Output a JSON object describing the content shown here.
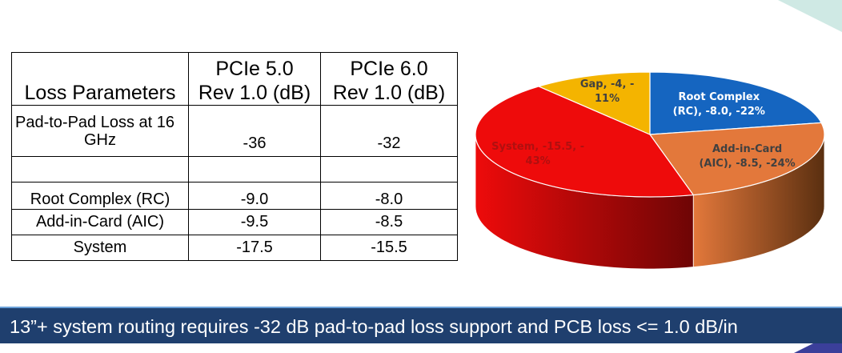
{
  "table": {
    "headers": [
      "Loss Parameters",
      "PCIe 5.0 Rev 1.0 (dB)",
      "PCIe 6.0 Rev 1.0 (dB)"
    ],
    "header_lines": {
      "c2a": "PCIe 5.0",
      "c2b": "Rev 1.0 (dB)",
      "c3a": "PCIe 6.0",
      "c3b": "Rev 1.0 (dB)"
    },
    "rows": [
      {
        "label": "Pad-to-Pad Loss at 16 GHz",
        "label_a": "Pad-to-Pad Loss at 16",
        "label_b": "GHz",
        "pcie5": "-36",
        "pcie6": "-32"
      },
      {
        "label": "",
        "pcie5": "",
        "pcie6": ""
      },
      {
        "label": "Root Complex (RC)",
        "pcie5": "-9.0",
        "pcie6": "-8.0"
      },
      {
        "label": "Add-in-Card (AIC)",
        "pcie5": "-9.5",
        "pcie6": "-8.5"
      },
      {
        "label": "System",
        "pcie5": "-17.5",
        "pcie6": "-15.5"
      }
    ]
  },
  "chart_data": {
    "type": "pie",
    "style": "3d",
    "slices": [
      {
        "name": "Root Complex (RC)",
        "value": -8.0,
        "percent": 22,
        "color": "#1565c0",
        "side_color": "#0d3d78",
        "label_lines": [
          "Root Complex",
          "(RC), -8.0, -22%"
        ],
        "label_color": "#ffffff"
      },
      {
        "name": "Add-in-Card (AIC)",
        "value": -8.5,
        "percent": 24,
        "color": "#e3783b",
        "side_color": "#5a2f10",
        "label_lines": [
          "Add-in-Card",
          "(AIC), -8.5, -24%"
        ],
        "label_color": "#404040"
      },
      {
        "name": "System",
        "value": -15.5,
        "percent": 43,
        "color": "#ee0b0b",
        "side_color": "#6e0505",
        "label_lines": [
          "System, -15.5, -",
          "43%"
        ],
        "label_color": "#b01010"
      },
      {
        "name": "Gap",
        "value": -4,
        "percent": 11,
        "color": "#f4b400",
        "side_color": "#8a6500",
        "label_lines": [
          "Gap, -4, -",
          "11%"
        ],
        "label_color": "#404040"
      }
    ]
  },
  "banner": {
    "text": "13”+ system routing requires -32 dB pad-to-pad loss support and PCB loss <= 1.0 dB/in"
  },
  "colors": {
    "banner_bg": "#1f3f6e",
    "banner_border": "#6aa1d9"
  }
}
